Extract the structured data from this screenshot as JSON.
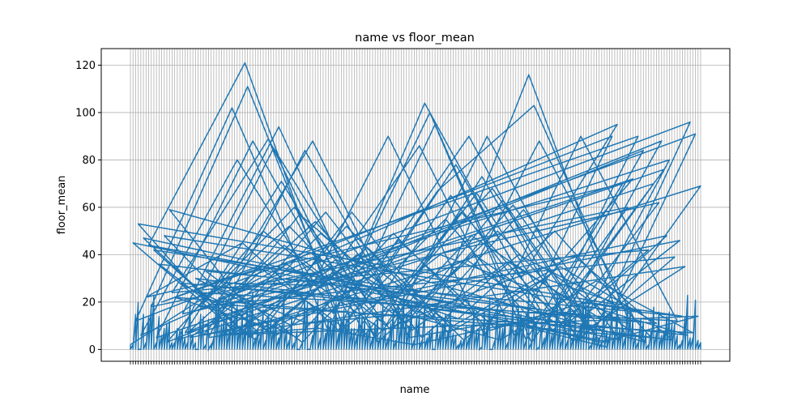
{
  "chart_data": {
    "type": "line",
    "title": "name vs floor_mean",
    "xlabel": "name",
    "ylabel": "floor_mean",
    "ylim": [
      -5,
      127
    ],
    "y_ticks": [
      0,
      20,
      40,
      60,
      80,
      100,
      120
    ],
    "grid": true,
    "legend": "none",
    "category_count": 220,
    "categories_note_visible": "Tick labels along the x axis are overlapping and unreadable",
    "series": [
      {
        "color": "#1f77b4",
        "values": [
          2,
          28,
          27,
          86,
          5,
          90,
          12,
          102,
          8,
          104,
          30,
          95,
          6,
          80,
          15,
          100,
          4,
          70,
          22,
          45,
          8,
          95,
          3,
          60,
          18,
          111,
          9,
          40,
          25,
          72,
          5,
          88,
          14,
          55,
          7,
          90,
          20,
          35,
          6,
          65,
          11,
          84,
          3,
          50,
          17,
          78,
          8,
          42,
          24,
          89,
          6,
          58,
          13,
          70,
          4,
          85,
          19,
          38,
          9,
          62,
          15,
          94,
          5,
          48,
          21,
          76,
          7,
          44,
          12,
          66,
          3,
          80,
          16,
          52,
          10,
          73,
          4,
          39,
          18,
          60,
          8,
          90,
          14,
          46,
          6,
          57,
          22,
          68,
          9,
          35,
          5,
          84,
          13,
          50,
          7,
          96,
          20,
          41,
          11,
          63,
          4,
          91,
          17,
          54,
          8,
          37,
          12,
          69,
          6,
          49,
          15,
          61,
          3,
          45,
          10,
          58,
          5,
          40,
          19,
          53,
          7,
          34,
          14,
          59,
          4,
          47,
          9,
          38,
          13,
          116,
          6,
          44,
          121,
          8,
          67,
          103,
          11,
          42,
          5,
          52,
          9,
          88,
          12,
          36,
          4,
          58,
          7,
          30,
          16,
          48,
          6,
          40,
          10,
          33,
          3,
          59,
          8,
          27,
          13,
          50,
          5,
          22,
          9,
          43,
          4,
          35,
          11,
          28,
          6,
          31,
          90,
          14,
          88,
          7,
          71,
          3,
          40,
          12,
          48,
          5,
          36,
          8,
          25,
          39,
          4,
          30,
          10,
          90,
          6,
          90,
          12,
          24,
          5,
          49,
          8,
          20,
          14,
          33,
          3,
          46,
          9,
          18,
          6,
          27,
          11,
          15,
          4,
          29,
          7,
          19,
          88,
          5,
          12,
          3,
          14,
          6,
          9,
          2,
          11,
          1
        ]
      }
    ]
  }
}
